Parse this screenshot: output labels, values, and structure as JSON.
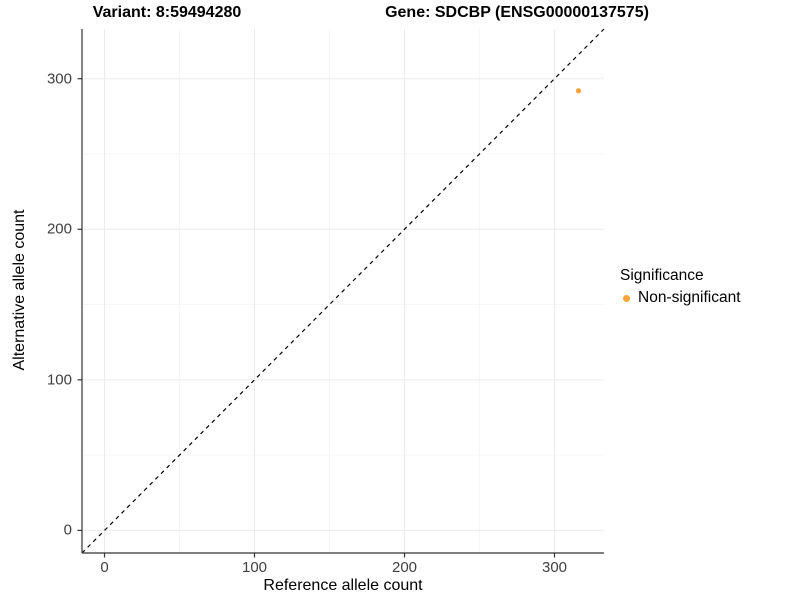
{
  "figure": {
    "title_left": "Variant: 8:59494280",
    "title_right": "Gene: SDCBP (ENSG00000137575)"
  },
  "chart_data": {
    "type": "scatter",
    "title": "Variant: 8:59494280   Gene: SDCBP (ENSG00000137575)",
    "variant": "8:59494280",
    "gene": "SDCBP",
    "gene_id": "ENSG00000137575",
    "xlabel": "Reference allele count",
    "ylabel": "Alternative allele count",
    "xlim": [
      -15,
      333
    ],
    "ylim": [
      -15,
      333
    ],
    "x_ticks": [
      0,
      100,
      200,
      300
    ],
    "y_ticks": [
      0,
      100,
      200,
      300
    ],
    "x_minor_ticks": [
      50,
      150,
      250
    ],
    "y_minor_ticks": [
      50,
      150,
      250
    ],
    "grid": "major-and-minor",
    "series": [
      {
        "name": "Non-significant",
        "color": "#FAA43C",
        "points": [
          {
            "x": 316,
            "y": 292
          }
        ]
      }
    ],
    "reference_line": {
      "type": "identity y=x",
      "style": "dashed",
      "color": "#000000"
    },
    "legend": {
      "title": "Significance",
      "position": "right",
      "entries": [
        {
          "label": "Non-significant",
          "color": "#FAA43C"
        }
      ]
    }
  },
  "colors": {
    "background": "#FFFFFF",
    "point": "#FAA43C",
    "grid_major": "#EBEBEB",
    "grid_minor": "#F6F6F6",
    "axis_line": "#333333",
    "tick_mark": "#333333",
    "tick_text": "#404040",
    "text": "#000000"
  }
}
